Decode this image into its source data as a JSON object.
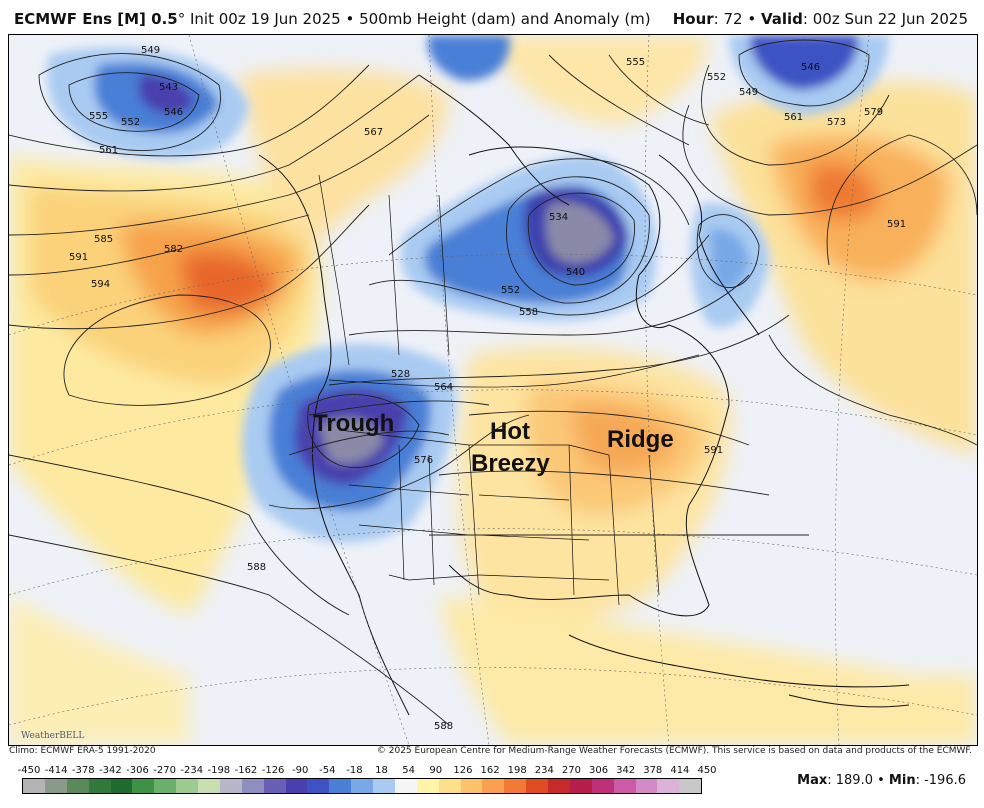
{
  "header": {
    "model": "ECMWF Ens [M] 0.5",
    "degree": "°",
    "init": " Init 00z 19 Jun 2025",
    "separator": " • ",
    "field": "500mb Height (dam) and Anomaly (m)",
    "hour_label": "Hour",
    "hour_value": ": 72",
    "valid_label": "Valid",
    "valid_value": ": 00z Sun 22 Jun 2025"
  },
  "annotations": {
    "trough": "Trough",
    "hot": "Hot",
    "breezy": "Breezy",
    "ridge": "Ridge"
  },
  "contour_labels": {
    "c549a": "549",
    "c543": "543",
    "c546a": "546",
    "c555a": "555",
    "c552a": "552",
    "c561a": "561",
    "c585": "585",
    "c582": "582",
    "c591a": "591",
    "c594": "594",
    "c567": "567",
    "c555b": "555",
    "c552b": "552",
    "c549b": "549",
    "c546b": "546",
    "c561b": "561",
    "c573": "573",
    "c579": "579",
    "c591b": "591",
    "c540": "540",
    "c534": "534",
    "c552c": "552",
    "c558": "558",
    "c528": "528",
    "c564": "564",
    "c576": "576",
    "c588a": "588",
    "c588b": "588",
    "c591c": "591"
  },
  "footer": {
    "climo": "Climo: ECMWF ERA-5 1991-2020",
    "copyright": "© 2025 European Centre for Medium-Range Weather Forecasts (ECMWF). This service is based on data and products of the ECMWF.",
    "logo": "WeatherBELL",
    "max_label": "Max",
    "max_value": ": 189.0",
    "sep": " • ",
    "min_label": "Min",
    "min_value": ": -196.6"
  },
  "colorbar": {
    "ticks": [
      "-450",
      "-414",
      "-378",
      "-342",
      "-306",
      "-270",
      "-234",
      "-198",
      "-162",
      "-126",
      "-90",
      "-54",
      "-18",
      "18",
      "54",
      "90",
      "126",
      "162",
      "198",
      "234",
      "270",
      "306",
      "342",
      "378",
      "414",
      "450"
    ],
    "colors": [
      "#b4b4b4",
      "#8a9a8a",
      "#5a8a5a",
      "#2f7a3a",
      "#1f6b2f",
      "#3e9246",
      "#6bb06a",
      "#9dca8f",
      "#c7dfb0",
      "#b7b7c9",
      "#8f8fbf",
      "#6a5fb6",
      "#4a3fae",
      "#3d52c4",
      "#4a7fd6",
      "#78a9e6",
      "#a9cbf2",
      "#f5f5f5",
      "#fff4a8",
      "#ffe08a",
      "#fdc36a",
      "#fba04f",
      "#f27a34",
      "#e04c22",
      "#c62a2a",
      "#b61d4a",
      "#c02f7a",
      "#cc5aa6",
      "#d28ac6",
      "#dcb2d8",
      "#c8c8c8"
    ]
  },
  "colors": {
    "ridge": "#f9a64a",
    "strong_ridge": "#e4541f",
    "trough": "#3d4fc1",
    "deep_trough": "#6a55b0"
  }
}
